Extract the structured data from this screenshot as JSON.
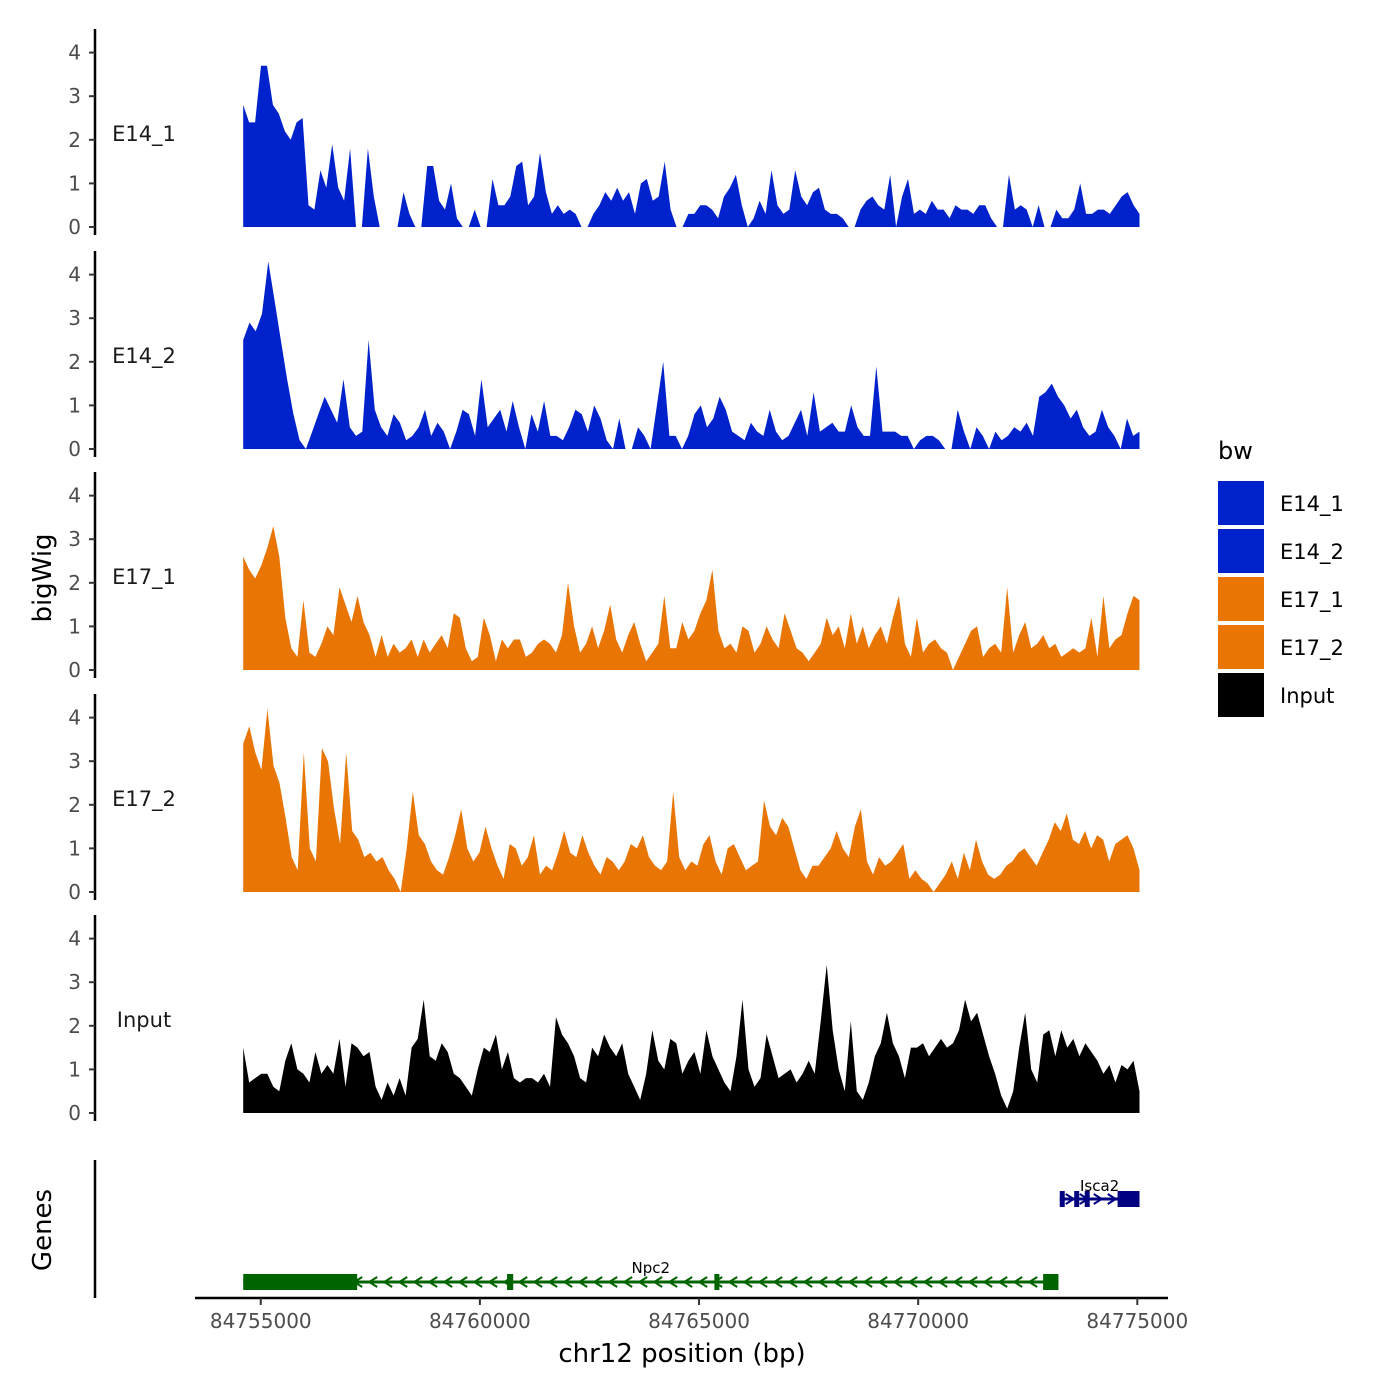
{
  "chart_data": {
    "type": "area",
    "ylabel": "bigWig",
    "xlabel": "chr12 position (bp)",
    "xlim": [
      84753500,
      84775700
    ],
    "x_range": [
      84754600,
      84775050
    ],
    "x_ticks": [
      84755000,
      84760000,
      84765000,
      84770000,
      84775000
    ],
    "x_tick_labels": [
      "84755000",
      "84760000",
      "84765000",
      "84770000",
      "84775000"
    ],
    "ylim": [
      0,
      4.5
    ],
    "y_ticks": [
      0,
      1,
      2,
      3,
      4
    ],
    "y_tick_labels": [
      "0",
      "1",
      "2",
      "3",
      "4"
    ],
    "genes_label": "Genes",
    "legend": {
      "title": "bw",
      "entries": [
        {
          "label": "E14_1",
          "color": "#0022CC"
        },
        {
          "label": "E14_2",
          "color": "#0022CC"
        },
        {
          "label": "E17_1",
          "color": "#E87504"
        },
        {
          "label": "E17_2",
          "color": "#E87504"
        },
        {
          "label": "Input",
          "color": "#000000"
        }
      ]
    },
    "series": [
      {
        "name": "E14_1",
        "color": "#0022CC",
        "values": [
          2.8,
          2.4,
          2.4,
          3.7,
          3.7,
          2.8,
          2.6,
          2.2,
          2.0,
          2.4,
          2.5,
          0.5,
          0.4,
          1.3,
          0.9,
          1.9,
          0.9,
          0.6,
          1.8,
          0,
          0,
          1.8,
          0.7,
          0,
          0,
          0,
          0,
          0.8,
          0.3,
          0,
          0,
          1.4,
          1.4,
          0.6,
          0.4,
          1.0,
          0.2,
          0,
          0,
          0.4,
          0,
          0,
          1.1,
          0.5,
          0.5,
          0.7,
          1.4,
          1.5,
          0.5,
          0.7,
          1.7,
          0.8,
          0.3,
          0.5,
          0.3,
          0.4,
          0.3,
          0,
          0,
          0.3,
          0.5,
          0.8,
          0.6,
          0.9,
          0.6,
          0.8,
          0.3,
          1.0,
          1.1,
          0.6,
          0.7,
          1.5,
          0.4,
          0,
          0,
          0.3,
          0.3,
          0.5,
          0.5,
          0.4,
          0.2,
          0.7,
          0.9,
          1.2,
          0.5,
          0,
          0.2,
          0.6,
          0.3,
          1.3,
          0.5,
          0.3,
          0.4,
          1.3,
          0.7,
          0.5,
          0.8,
          0.9,
          0.4,
          0.3,
          0.3,
          0.2,
          0,
          0,
          0.4,
          0.6,
          0.7,
          0.5,
          0.4,
          1.2,
          0,
          0.7,
          1.1,
          0.3,
          0.4,
          0.3,
          0.6,
          0.4,
          0.4,
          0.2,
          0.5,
          0.4,
          0.4,
          0.3,
          0.5,
          0.5,
          0.2,
          0,
          0,
          1.2,
          0.4,
          0.5,
          0.4,
          0,
          0.5,
          0,
          0,
          0.4,
          0.2,
          0.2,
          0.4,
          1.0,
          0.3,
          0.3,
          0.4,
          0.4,
          0.3,
          0.5,
          0.7,
          0.8,
          0.5,
          0.3
        ]
      },
      {
        "name": "E14_2",
        "color": "#0022CC",
        "values": [
          2.5,
          2.9,
          2.7,
          3.1,
          4.3,
          3.4,
          2.5,
          1.6,
          0.8,
          0.2,
          0,
          0.4,
          0.8,
          1.2,
          0.9,
          0.6,
          1.6,
          0.5,
          0.3,
          0.4,
          2.5,
          0.9,
          0.5,
          0.3,
          0.8,
          0.6,
          0.2,
          0.3,
          0.5,
          0.9,
          0.3,
          0.6,
          0.4,
          0,
          0.4,
          0.9,
          0.8,
          0.3,
          1.6,
          0.5,
          0.7,
          0.9,
          0.4,
          1.1,
          0.5,
          0,
          0.8,
          0.4,
          1.1,
          0.3,
          0.3,
          0.2,
          0.5,
          0.9,
          0.8,
          0.4,
          1.0,
          0.7,
          0.2,
          0,
          0.7,
          0,
          0,
          0.5,
          0.3,
          0,
          1.0,
          2.0,
          0.3,
          0.3,
          0,
          0.3,
          0.8,
          1.0,
          0.5,
          0.7,
          1.2,
          0.9,
          0.4,
          0.3,
          0.2,
          0.6,
          0.4,
          0.3,
          0.9,
          0.4,
          0.2,
          0.3,
          0.6,
          0.9,
          0.3,
          1.3,
          0.4,
          0.5,
          0.6,
          0.4,
          0.4,
          1.0,
          0.5,
          0.3,
          0.3,
          1.9,
          0.4,
          0.4,
          0.4,
          0.3,
          0.3,
          0,
          0.2,
          0.3,
          0.3,
          0.2,
          0,
          0,
          0.9,
          0.4,
          0,
          0.5,
          0.3,
          0,
          0.4,
          0.2,
          0.3,
          0.5,
          0.4,
          0.6,
          0.3,
          1.2,
          1.3,
          1.5,
          1.2,
          1.0,
          0.7,
          0.9,
          0.5,
          0.3,
          0.4,
          0.9,
          0.5,
          0.3,
          0,
          0.7,
          0.3,
          0.4
        ]
      },
      {
        "name": "E17_1",
        "color": "#E87504",
        "values": [
          2.6,
          2.3,
          2.1,
          2.4,
          2.8,
          3.3,
          2.6,
          1.2,
          0.5,
          0.3,
          1.6,
          0.4,
          0.3,
          0.6,
          1.0,
          0.8,
          1.9,
          1.5,
          1.1,
          1.7,
          1.1,
          0.8,
          0.3,
          0.8,
          0.3,
          0.6,
          0.4,
          0.5,
          0.7,
          0.3,
          0.7,
          0.4,
          0.6,
          0.8,
          0.5,
          1.3,
          1.2,
          0.5,
          0.2,
          0.3,
          1.2,
          0.8,
          0.2,
          0.7,
          0.5,
          0.7,
          0.7,
          0.3,
          0.4,
          0.6,
          0.7,
          0.6,
          0.4,
          0.8,
          2.0,
          1.0,
          0.4,
          0.6,
          1.0,
          0.5,
          0.9,
          1.5,
          0.7,
          0.4,
          0.8,
          1.1,
          0.6,
          0.2,
          0.4,
          0.6,
          1.7,
          0.5,
          0.5,
          1.1,
          0.7,
          0.9,
          1.3,
          1.6,
          2.3,
          0.9,
          0.5,
          0.6,
          0.4,
          1.0,
          0.9,
          0.4,
          0.6,
          1.0,
          0.7,
          0.5,
          1.3,
          0.9,
          0.5,
          0.4,
          0.2,
          0.4,
          0.6,
          1.2,
          0.8,
          1.0,
          0.5,
          1.3,
          0.6,
          1.0,
          0.5,
          0.8,
          1.0,
          0.6,
          1.2,
          1.7,
          0.6,
          0.3,
          1.2,
          0.4,
          0.6,
          0.7,
          0.5,
          0.4,
          0,
          0.3,
          0.6,
          0.9,
          1.0,
          0.3,
          0.5,
          0.6,
          0.4,
          1.9,
          0.4,
          0.8,
          1.1,
          0.5,
          0.6,
          0.8,
          0.5,
          0.6,
          0.3,
          0.4,
          0.5,
          0.4,
          0.5,
          1.2,
          0.3,
          1.7,
          0.5,
          0.7,
          0.8,
          1.3,
          1.7,
          1.6
        ]
      },
      {
        "name": "E17_2",
        "color": "#E87504",
        "values": [
          3.4,
          3.8,
          3.2,
          2.8,
          4.2,
          2.9,
          2.5,
          1.7,
          0.8,
          0.5,
          3.2,
          1.0,
          0.7,
          3.3,
          3.0,
          1.9,
          1.1,
          3.2,
          1.4,
          1.2,
          0.8,
          0.9,
          0.7,
          0.8,
          0.5,
          0.3,
          0,
          1.0,
          2.3,
          1.3,
          1.1,
          0.7,
          0.5,
          0.4,
          0.8,
          1.3,
          1.9,
          1.0,
          0.7,
          0.9,
          1.5,
          1.0,
          0.6,
          0.3,
          1.1,
          1.0,
          0.6,
          0.8,
          1.3,
          0.4,
          0.6,
          0.5,
          0.9,
          1.4,
          0.9,
          0.8,
          1.3,
          0.9,
          0.6,
          0.4,
          0.8,
          0.7,
          0.5,
          0.7,
          1.1,
          1.0,
          1.3,
          0.8,
          0.6,
          0.5,
          0.7,
          2.3,
          0.8,
          0.5,
          0.7,
          0.6,
          1.1,
          1.3,
          0.7,
          0.4,
          1.0,
          1.1,
          0.8,
          0.5,
          0.6,
          0.7,
          2.1,
          1.5,
          1.3,
          1.7,
          1.5,
          1.0,
          0.5,
          0.3,
          0.6,
          0.6,
          0.8,
          1.0,
          1.4,
          1.0,
          0.8,
          1.5,
          1.9,
          0.7,
          0.4,
          0.8,
          0.6,
          0.7,
          0.9,
          1.1,
          0.3,
          0.5,
          0.3,
          0.2,
          0,
          0.2,
          0.4,
          0.7,
          0.3,
          0.9,
          0.5,
          1.2,
          0.7,
          0.4,
          0.3,
          0.4,
          0.6,
          0.7,
          0.9,
          1.0,
          0.8,
          0.6,
          0.9,
          1.2,
          1.6,
          1.4,
          1.8,
          1.2,
          1.1,
          1.4,
          1.0,
          1.3,
          1.2,
          0.7,
          1.1,
          1.2,
          1.3,
          1.0,
          0.5
        ]
      },
      {
        "name": "Input",
        "color": "#000000",
        "values": [
          1.5,
          0.7,
          0.8,
          0.9,
          0.9,
          0.6,
          0.5,
          1.2,
          1.6,
          1.0,
          0.9,
          0.7,
          1.4,
          0.9,
          1.1,
          0.9,
          1.7,
          0.6,
          1.6,
          1.5,
          1.3,
          1.4,
          0.6,
          0.3,
          0.7,
          0.4,
          0.8,
          0.4,
          1.5,
          1.7,
          2.6,
          1.3,
          1.2,
          1.6,
          1.4,
          0.9,
          0.8,
          0.6,
          0.4,
          1.0,
          1.5,
          1.4,
          1.8,
          1.0,
          1.4,
          0.8,
          0.7,
          0.8,
          0.8,
          0.7,
          0.9,
          0.6,
          2.2,
          1.8,
          1.6,
          1.3,
          0.8,
          0.7,
          1.5,
          1.3,
          1.8,
          1.5,
          1.3,
          1.6,
          0.9,
          0.6,
          0.3,
          0.9,
          1.9,
          1.2,
          1.0,
          1.7,
          1.6,
          0.9,
          1.2,
          1.4,
          0.9,
          1.9,
          1.3,
          1.0,
          0.7,
          0.5,
          1.3,
          2.6,
          1.0,
          0.6,
          0.8,
          1.8,
          1.3,
          0.8,
          0.9,
          1.0,
          0.7,
          0.9,
          1.2,
          0.9,
          2.1,
          3.4,
          1.9,
          1.0,
          0.5,
          2.1,
          0.5,
          0.3,
          0.7,
          1.3,
          1.6,
          2.3,
          1.6,
          1.3,
          0.8,
          1.5,
          1.5,
          1.6,
          1.3,
          1.5,
          1.7,
          1.5,
          1.6,
          1.9,
          2.6,
          2.1,
          2.3,
          1.8,
          1.3,
          0.9,
          0.4,
          0.1,
          0.5,
          1.5,
          2.3,
          1.0,
          0.7,
          1.8,
          1.9,
          1.3,
          1.9,
          1.5,
          1.7,
          1.3,
          1.6,
          1.4,
          1.2,
          0.9,
          1.1,
          0.7,
          1.1,
          1.0,
          1.2,
          0.5
        ]
      }
    ],
    "genes": [
      {
        "name": "Isca2",
        "strand": "+",
        "color": "#000080",
        "start": 84773230,
        "end": 84775050,
        "exons": [
          [
            84773230,
            84773320
          ],
          [
            84773560,
            84773640
          ],
          [
            84773800,
            84773880
          ],
          [
            84774550,
            84775050
          ]
        ]
      },
      {
        "name": "Npc2",
        "strand": "-",
        "color": "#006400",
        "start": 84754600,
        "end": 84773200,
        "exons": [
          [
            84754600,
            84757200
          ],
          [
            84760620,
            84760760
          ],
          [
            84765350,
            84765450
          ],
          [
            84772850,
            84773200
          ]
        ]
      }
    ]
  }
}
